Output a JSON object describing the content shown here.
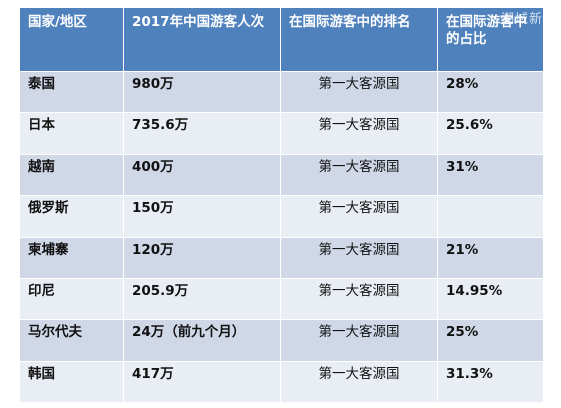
{
  "table": {
    "headers": [
      "国家/地区",
      "2017年中国游客人次",
      "在国际游客中的排名",
      "在国际游客中的占比"
    ],
    "rows": [
      {
        "country": "泰国",
        "visitors": "980万",
        "rank": "第一大客源国",
        "share": "28%"
      },
      {
        "country": "日本",
        "visitors": "735.6万",
        "rank": "第一大客源国",
        "share": "25.6%"
      },
      {
        "country": "越南",
        "visitors": "400万",
        "rank": "第一大客源国",
        "share": "31%"
      },
      {
        "country": "俄罗斯",
        "visitors": "150万",
        "rank": "第一大客源国",
        "share": ""
      },
      {
        "country": "柬埔寨",
        "visitors": "120万",
        "rank": "第一大客源国",
        "share": "21%"
      },
      {
        "country": "印尼",
        "visitors": "205.9万",
        "rank": "第一大客源国",
        "share": "14.95%"
      },
      {
        "country": "马尔代夫",
        "visitors": "24万（前九个月）",
        "rank": "第一大客源国",
        "share": "25%"
      },
      {
        "country": "韩国",
        "visitors": "417万",
        "rank": "第一大客源国",
        "share": "31.3%"
      }
    ]
  },
  "watermark": "潮域新闻",
  "colors": {
    "header": "#4f81bd",
    "row_dark": "#d0d8e8",
    "row_light": "#e9edf4"
  }
}
